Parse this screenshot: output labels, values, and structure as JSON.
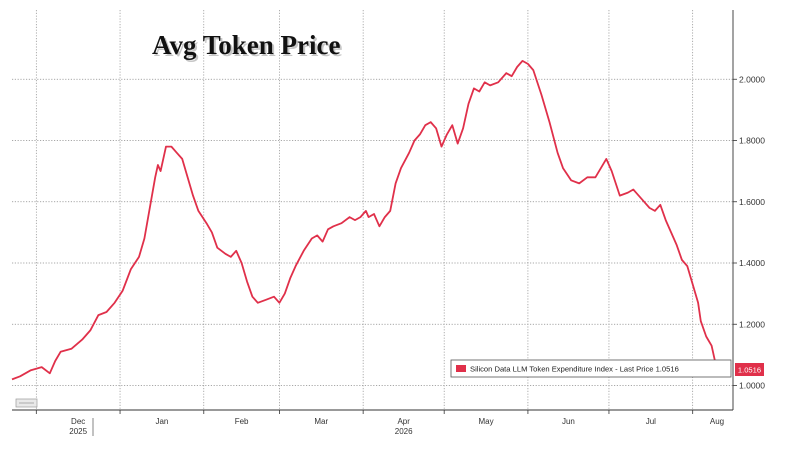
{
  "chart_data": {
    "type": "line",
    "title": "Avg Token Price",
    "xlabel": "",
    "ylabel": "",
    "ylim": [
      0.92,
      2.2
    ],
    "y_ticks": [
      "1.0000",
      "1.2000",
      "1.4000",
      "1.6000",
      "1.8000",
      "2.0000"
    ],
    "y_tick_values": [
      1.0,
      1.2,
      1.4,
      1.6,
      1.8,
      2.0
    ],
    "x_range": [
      "2025-11-22",
      "2026-08-10"
    ],
    "x_ticks": [
      {
        "label": "Dec",
        "date": "2025-12-01"
      },
      {
        "label": "Jan",
        "date": "2026-01-01"
      },
      {
        "label": "Feb",
        "date": "2026-02-01"
      },
      {
        "label": "Mar",
        "date": "2026-03-01"
      },
      {
        "label": "Apr",
        "date": "2026-04-01"
      },
      {
        "label": "May",
        "date": "2026-05-01"
      },
      {
        "label": "Jun",
        "date": "2026-06-01"
      },
      {
        "label": "Jul",
        "date": "2026-07-01"
      },
      {
        "label": "Aug",
        "date": "2026-08-01"
      }
    ],
    "year_labels": [
      {
        "label": "2025",
        "date": "2025-12-01"
      },
      {
        "label": "2026",
        "date": "2026-04-01"
      }
    ],
    "grid": true,
    "legend_position": "bottom-right",
    "series": [
      {
        "name": "Silicon Data LLM Token Expenditure Index - Last Price 1.0516",
        "color": "#e0304a",
        "last_value_label": "1.0516",
        "points": [
          [
            "2025-11-22",
            1.02
          ],
          [
            "2025-11-25",
            1.03
          ],
          [
            "2025-11-29",
            1.05
          ],
          [
            "2025-12-03",
            1.06
          ],
          [
            "2025-12-06",
            1.04
          ],
          [
            "2025-12-08",
            1.08
          ],
          [
            "2025-12-10",
            1.11
          ],
          [
            "2025-12-14",
            1.12
          ],
          [
            "2025-12-18",
            1.15
          ],
          [
            "2025-12-21",
            1.18
          ],
          [
            "2025-12-24",
            1.23
          ],
          [
            "2025-12-27",
            1.24
          ],
          [
            "2025-12-30",
            1.27
          ],
          [
            "2026-01-02",
            1.31
          ],
          [
            "2026-01-05",
            1.38
          ],
          [
            "2026-01-08",
            1.42
          ],
          [
            "2026-01-10",
            1.48
          ],
          [
            "2026-01-12",
            1.58
          ],
          [
            "2026-01-14",
            1.68
          ],
          [
            "2026-01-15",
            1.72
          ],
          [
            "2026-01-16",
            1.7
          ],
          [
            "2026-01-18",
            1.78
          ],
          [
            "2026-01-20",
            1.78
          ],
          [
            "2026-01-22",
            1.76
          ],
          [
            "2026-01-24",
            1.74
          ],
          [
            "2026-01-26",
            1.68
          ],
          [
            "2026-01-28",
            1.62
          ],
          [
            "2026-01-30",
            1.57
          ],
          [
            "2026-02-02",
            1.53
          ],
          [
            "2026-02-04",
            1.5
          ],
          [
            "2026-02-06",
            1.45
          ],
          [
            "2026-02-09",
            1.43
          ],
          [
            "2026-02-11",
            1.42
          ],
          [
            "2026-02-13",
            1.44
          ],
          [
            "2026-02-15",
            1.4
          ],
          [
            "2026-02-17",
            1.34
          ],
          [
            "2026-02-19",
            1.29
          ],
          [
            "2026-02-21",
            1.27
          ],
          [
            "2026-02-24",
            1.28
          ],
          [
            "2026-02-27",
            1.29
          ],
          [
            "2026-03-01",
            1.27
          ],
          [
            "2026-03-03",
            1.3
          ],
          [
            "2026-03-05",
            1.35
          ],
          [
            "2026-03-07",
            1.39
          ],
          [
            "2026-03-10",
            1.44
          ],
          [
            "2026-03-13",
            1.48
          ],
          [
            "2026-03-15",
            1.49
          ],
          [
            "2026-03-17",
            1.47
          ],
          [
            "2026-03-19",
            1.51
          ],
          [
            "2026-03-21",
            1.52
          ],
          [
            "2026-03-24",
            1.53
          ],
          [
            "2026-03-27",
            1.55
          ],
          [
            "2026-03-29",
            1.54
          ],
          [
            "2026-03-31",
            1.55
          ],
          [
            "2026-04-02",
            1.57
          ],
          [
            "2026-04-03",
            1.55
          ],
          [
            "2026-04-05",
            1.56
          ],
          [
            "2026-04-07",
            1.52
          ],
          [
            "2026-04-09",
            1.55
          ],
          [
            "2026-04-11",
            1.57
          ],
          [
            "2026-04-13",
            1.66
          ],
          [
            "2026-04-15",
            1.71
          ],
          [
            "2026-04-18",
            1.76
          ],
          [
            "2026-04-20",
            1.8
          ],
          [
            "2026-04-22",
            1.82
          ],
          [
            "2026-04-24",
            1.85
          ],
          [
            "2026-04-26",
            1.86
          ],
          [
            "2026-04-28",
            1.84
          ],
          [
            "2026-04-30",
            1.78
          ],
          [
            "2026-05-02",
            1.82
          ],
          [
            "2026-05-04",
            1.85
          ],
          [
            "2026-05-06",
            1.79
          ],
          [
            "2026-05-08",
            1.84
          ],
          [
            "2026-05-10",
            1.92
          ],
          [
            "2026-05-12",
            1.97
          ],
          [
            "2026-05-14",
            1.96
          ],
          [
            "2026-05-16",
            1.99
          ],
          [
            "2026-05-18",
            1.98
          ],
          [
            "2026-05-21",
            1.99
          ],
          [
            "2026-05-24",
            2.02
          ],
          [
            "2026-05-26",
            2.01
          ],
          [
            "2026-05-28",
            2.04
          ],
          [
            "2026-05-30",
            2.06
          ],
          [
            "2026-06-01",
            2.05
          ],
          [
            "2026-06-03",
            2.03
          ],
          [
            "2026-06-06",
            1.95
          ],
          [
            "2026-06-09",
            1.86
          ],
          [
            "2026-06-12",
            1.76
          ],
          [
            "2026-06-14",
            1.71
          ],
          [
            "2026-06-17",
            1.67
          ],
          [
            "2026-06-20",
            1.66
          ],
          [
            "2026-06-23",
            1.68
          ],
          [
            "2026-06-26",
            1.68
          ],
          [
            "2026-06-28",
            1.71
          ],
          [
            "2026-06-30",
            1.74
          ],
          [
            "2026-07-02",
            1.7
          ],
          [
            "2026-07-05",
            1.62
          ],
          [
            "2026-07-08",
            1.63
          ],
          [
            "2026-07-10",
            1.64
          ],
          [
            "2026-07-13",
            1.61
          ],
          [
            "2026-07-16",
            1.58
          ],
          [
            "2026-07-18",
            1.57
          ],
          [
            "2026-07-20",
            1.59
          ],
          [
            "2026-07-22",
            1.54
          ],
          [
            "2026-07-24",
            1.5
          ],
          [
            "2026-07-26",
            1.46
          ],
          [
            "2026-07-28",
            1.41
          ],
          [
            "2026-07-30",
            1.39
          ],
          [
            "2026-08-01",
            1.33
          ],
          [
            "2026-08-03",
            1.27
          ],
          [
            "2026-08-04",
            1.21
          ],
          [
            "2026-08-06",
            1.16
          ],
          [
            "2026-08-08",
            1.13
          ],
          [
            "2026-08-10",
            1.05
          ]
        ]
      }
    ]
  }
}
